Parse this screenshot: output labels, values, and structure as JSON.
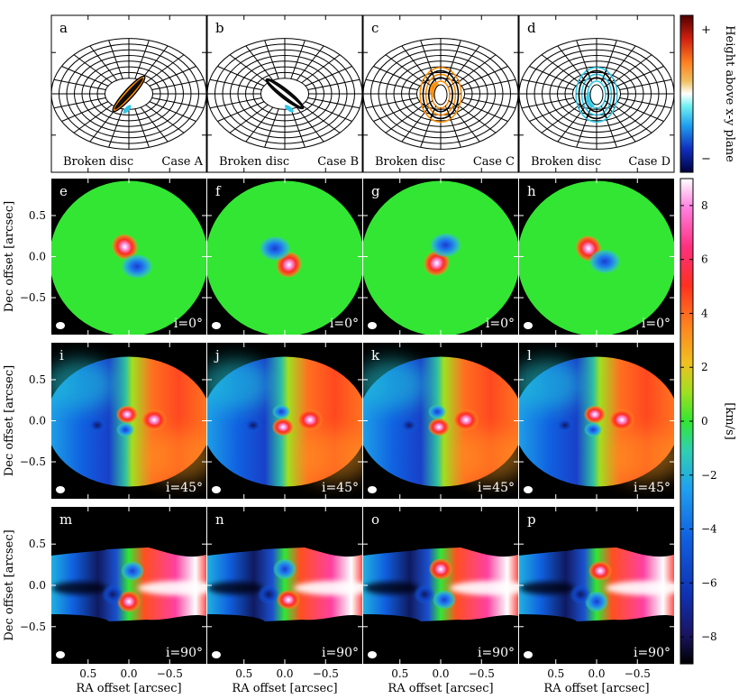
{
  "chart_data": {
    "type": "heatmap",
    "description_rows": [
      {
        "row": "schematic",
        "panels": [
          {
            "letter": "a",
            "left_label": "Broken disc",
            "right_label": "Case A"
          },
          {
            "letter": "b",
            "left_label": "Broken disc",
            "right_label": "Case B"
          },
          {
            "letter": "c",
            "left_label": "Broken disc",
            "right_label": "Case C"
          },
          {
            "letter": "d",
            "left_label": "Broken disc",
            "right_label": "Case D"
          }
        ]
      },
      {
        "row": "velocity_i0",
        "inclination_label": "i=0°",
        "panels": [
          {
            "letter": "e",
            "case": "A",
            "red_offset": [
              0.05,
              0.12
            ],
            "blue_offset": [
              -0.1,
              -0.12
            ],
            "inner_pa": 225
          },
          {
            "letter": "f",
            "case": "B",
            "red_offset": [
              -0.05,
              -0.1
            ],
            "blue_offset": [
              0.12,
              0.1
            ],
            "inner_pa": 135
          },
          {
            "letter": "g",
            "case": "C",
            "red_offset": [
              0.05,
              -0.08
            ],
            "blue_offset": [
              -0.06,
              0.14
            ],
            "inner_pa": 315
          },
          {
            "letter": "h",
            "case": "D",
            "red_offset": [
              0.1,
              0.1
            ],
            "blue_offset": [
              -0.1,
              -0.06
            ],
            "inner_pa": 45
          }
        ]
      },
      {
        "row": "velocity_i45",
        "inclination_label": "i=45°",
        "panels": [
          {
            "letter": "i",
            "case": "A"
          },
          {
            "letter": "j",
            "case": "B"
          },
          {
            "letter": "k",
            "case": "C"
          },
          {
            "letter": "l",
            "case": "D"
          }
        ]
      },
      {
        "row": "velocity_i90",
        "inclination_label": "i=90°",
        "panels": [
          {
            "letter": "m",
            "case": "A"
          },
          {
            "letter": "n",
            "case": "B"
          },
          {
            "letter": "o",
            "case": "C"
          },
          {
            "letter": "p",
            "case": "D"
          }
        ]
      }
    ],
    "xlabel": "RA offset [arcsec]",
    "ylabel": "Dec offset [arcsec]",
    "x_ticks": [
      0.5,
      0.0,
      -0.5
    ],
    "x_tick_labels": [
      "0.5",
      "0.0",
      "−0.5"
    ],
    "y_ticks": [
      0.5,
      0.0,
      -0.5
    ],
    "y_tick_labels": [
      "0.5",
      "0.0",
      "−0.5"
    ],
    "xlim": [
      0.95,
      -0.95
    ],
    "ylim": [
      -0.95,
      0.95
    ],
    "colorbar_height": {
      "label": "Height above x-y plane",
      "top_tick": "+",
      "bottom_tick": "−"
    },
    "colorbar_velocity": {
      "label": "[km/s]",
      "range": [
        -9,
        9
      ],
      "ticks": [
        8,
        6,
        4,
        2,
        0,
        -2,
        -4,
        -6,
        -8
      ],
      "tick_labels": [
        "8",
        "6",
        "4",
        "2",
        "0",
        "−2",
        "−4",
        "−6",
        "−8"
      ]
    }
  },
  "colors": {
    "background_map": "#000000",
    "zero_velocity": "#33e633"
  }
}
